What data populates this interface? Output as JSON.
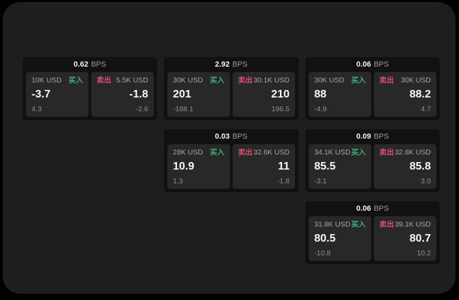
{
  "labels": {
    "bps": "BPS",
    "buy": "买入",
    "sell": "卖出"
  },
  "colors": {
    "background": "#000000",
    "surface": "#1e1e1e",
    "card": "#111111",
    "panel": "#282828",
    "buy": "#3db276",
    "sell": "#d8506c",
    "value_text": "#f7f7f7",
    "muted_text": "#a6a6a6"
  },
  "cards": [
    {
      "bps": "0.62",
      "buy": {
        "amount": "10K USD",
        "price": "-3.7",
        "change": "4.3"
      },
      "sell": {
        "amount": "5.5K USD",
        "price": "-1.8",
        "change": "-2.6"
      }
    },
    {
      "bps": "2.92",
      "buy": {
        "amount": "30K USD",
        "price": "201",
        "change": "-188.1"
      },
      "sell": {
        "amount": "30.1K USD",
        "price": "210",
        "change": "196.5"
      }
    },
    {
      "bps": "0.06",
      "buy": {
        "amount": "30K USD",
        "price": "88",
        "change": "-4.9"
      },
      "sell": {
        "amount": "30K USD",
        "price": "88.2",
        "change": "4.7"
      }
    },
    {
      "bps": "0.03",
      "buy": {
        "amount": "28K USD",
        "price": "10.9",
        "change": "1.3"
      },
      "sell": {
        "amount": "32.6K USD",
        "price": "11",
        "change": "-1.8"
      }
    },
    {
      "bps": "0.09",
      "buy": {
        "amount": "34.1K USD",
        "price": "85.5",
        "change": "-3.1"
      },
      "sell": {
        "amount": "32.8K USD",
        "price": "85.8",
        "change": "3.0"
      }
    },
    {
      "bps": "0.06",
      "buy": {
        "amount": "31.8K USD",
        "price": "80.5",
        "change": "-10.8"
      },
      "sell": {
        "amount": "39.1K USD",
        "price": "80.7",
        "change": "10.2"
      }
    }
  ]
}
